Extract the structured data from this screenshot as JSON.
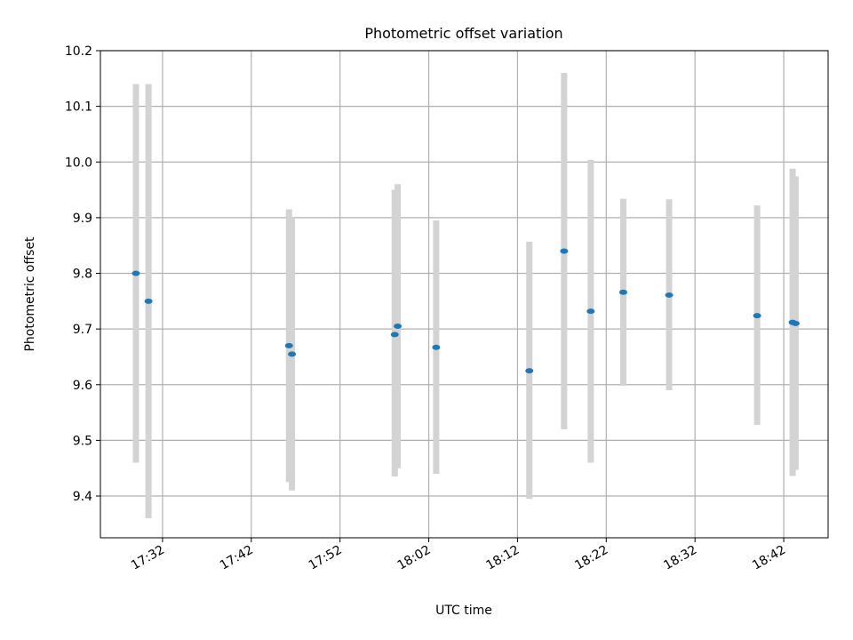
{
  "chart_data": {
    "type": "scatter",
    "title": "Photometric offset variation",
    "xlabel": "UTC time",
    "ylabel": "Photometric offset",
    "xlim": [
      "17:25",
      "18:47"
    ],
    "ylim": [
      9.325,
      10.2
    ],
    "x_ticks": [
      "17:32",
      "17:42",
      "17:52",
      "18:02",
      "18:12",
      "18:22",
      "18:32",
      "18:42"
    ],
    "y_ticks": [
      "9.4",
      "9.5",
      "9.6",
      "9.7",
      "9.8",
      "9.9",
      "10.0",
      "10.1",
      "10.2"
    ],
    "grid": true,
    "legend": "none",
    "series": [
      {
        "marker_color": "#1f77b4",
        "errorbar_color": "#d3d3d3",
        "points": [
          {
            "x": "17:29:00",
            "y": 9.8,
            "ylow": 9.46,
            "yhigh": 10.14
          },
          {
            "x": "17:30:25",
            "y": 9.75,
            "ylow": 9.36,
            "yhigh": 10.14
          },
          {
            "x": "17:46:15",
            "y": 9.67,
            "ylow": 9.425,
            "yhigh": 9.915
          },
          {
            "x": "17:46:35",
            "y": 9.655,
            "ylow": 9.41,
            "yhigh": 9.9
          },
          {
            "x": "17:58:10",
            "y": 9.69,
            "ylow": 9.435,
            "yhigh": 9.95
          },
          {
            "x": "17:58:30",
            "y": 9.705,
            "ylow": 9.45,
            "yhigh": 9.96
          },
          {
            "x": "18:02:50",
            "y": 9.667,
            "ylow": 9.44,
            "yhigh": 9.895
          },
          {
            "x": "18:13:20",
            "y": 9.625,
            "ylow": 9.395,
            "yhigh": 9.857
          },
          {
            "x": "18:17:15",
            "y": 9.84,
            "ylow": 9.52,
            "yhigh": 10.16
          },
          {
            "x": "18:20:15",
            "y": 9.732,
            "ylow": 9.46,
            "yhigh": 10.004
          },
          {
            "x": "18:23:55",
            "y": 9.766,
            "ylow": 9.598,
            "yhigh": 9.934
          },
          {
            "x": "18:29:05",
            "y": 9.761,
            "ylow": 9.59,
            "yhigh": 9.933
          },
          {
            "x": "18:39:00",
            "y": 9.724,
            "ylow": 9.528,
            "yhigh": 9.922
          },
          {
            "x": "18:43:00",
            "y": 9.712,
            "ylow": 9.436,
            "yhigh": 9.988
          },
          {
            "x": "18:43:20",
            "y": 9.71,
            "ylow": 9.447,
            "yhigh": 9.974
          }
        ]
      }
    ]
  }
}
